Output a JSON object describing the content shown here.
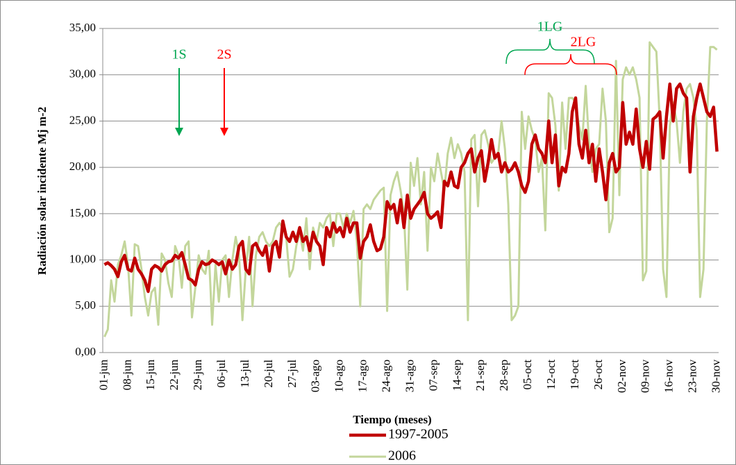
{
  "chart_data": {
    "type": "line",
    "y_label": "Radiación solar incidente Mj m-2",
    "x_label": "Tiempo (meses)",
    "ylim": [
      0,
      35
    ],
    "yticks": [
      {
        "value": 0,
        "label": "0,00"
      },
      {
        "value": 5,
        "label": "5,00"
      },
      {
        "value": 10,
        "label": "10,00"
      },
      {
        "value": 15,
        "label": "15,00"
      },
      {
        "value": 20,
        "label": "20,00"
      },
      {
        "value": 25,
        "label": "25,00"
      },
      {
        "value": 30,
        "label": "30,00"
      },
      {
        "value": 35,
        "label": "35,00"
      }
    ],
    "grid": true,
    "categories": [
      "01-jun",
      null,
      null,
      null,
      null,
      null,
      null,
      "08-jun",
      null,
      null,
      null,
      null,
      null,
      null,
      "15-jun",
      null,
      null,
      null,
      null,
      null,
      null,
      "22-jun",
      null,
      null,
      null,
      null,
      null,
      null,
      "29-jun",
      null,
      null,
      null,
      null,
      null,
      null,
      "06-jul",
      null,
      null,
      null,
      null,
      null,
      null,
      "13-jul",
      null,
      null,
      null,
      null,
      null,
      null,
      "20-jul",
      null,
      null,
      null,
      null,
      null,
      null,
      "27-jul",
      null,
      null,
      null,
      null,
      null,
      null,
      "03-ago",
      null,
      null,
      null,
      null,
      null,
      null,
      "10-ago",
      null,
      null,
      null,
      null,
      null,
      null,
      "17-ago",
      null,
      null,
      null,
      null,
      null,
      null,
      "24-ago",
      null,
      null,
      null,
      null,
      null,
      null,
      "31-ago",
      null,
      null,
      null,
      null,
      null,
      null,
      "07-sep",
      null,
      null,
      null,
      null,
      null,
      null,
      "14-sep",
      null,
      null,
      null,
      null,
      null,
      null,
      "21-sep",
      null,
      null,
      null,
      null,
      null,
      null,
      "28-sep",
      null,
      null,
      null,
      null,
      null,
      null,
      "05-oct",
      null,
      null,
      null,
      null,
      null,
      null,
      "12-oct",
      null,
      null,
      null,
      null,
      null,
      null,
      "19-oct",
      null,
      null,
      null,
      null,
      null,
      null,
      "26-oct",
      null,
      null,
      null,
      null,
      null,
      null,
      "02-nov",
      null,
      null,
      null,
      null,
      null,
      null,
      "09-nov",
      null,
      null,
      null,
      null,
      null,
      null,
      "16-nov",
      null,
      null,
      null,
      null,
      null,
      null,
      "23-nov",
      null,
      null,
      null,
      null,
      null,
      null,
      "30-nov"
    ],
    "series": [
      {
        "name": "1997-2005",
        "color": "#c00000",
        "width": 4.5,
        "values": [
          9.5,
          9.7,
          9.4,
          9.0,
          8.2,
          9.8,
          10.5,
          9.0,
          8.8,
          10.2,
          9.0,
          8.5,
          7.8,
          6.6,
          9.0,
          9.4,
          9.2,
          8.8,
          9.5,
          9.8,
          9.9,
          10.5,
          10.2,
          10.8,
          9.5,
          8.0,
          7.8,
          7.3,
          9.0,
          9.8,
          9.5,
          9.6,
          10.0,
          9.8,
          9.5,
          9.8,
          8.5,
          10.0,
          9.0,
          9.5,
          11.5,
          12.0,
          9.0,
          8.5,
          11.5,
          11.8,
          11.0,
          10.5,
          11.5,
          8.8,
          11.5,
          12.0,
          10.3,
          14.2,
          12.5,
          12.0,
          13.0,
          12.0,
          13.5,
          12.0,
          12.5,
          11.0,
          13.0,
          12.0,
          11.5,
          9.5,
          13.5,
          12.5,
          14.0,
          13.0,
          13.5,
          12.5,
          14.5,
          13.0,
          14.0,
          14.0,
          10.2,
          12.0,
          12.5,
          13.8,
          12.0,
          11.0,
          11.2,
          12.5,
          16.3,
          15.5,
          16.0,
          14.0,
          16.5,
          13.5,
          17.0,
          14.5,
          15.5,
          16.0,
          16.5,
          17.3,
          15.0,
          14.5,
          14.8,
          15.2,
          13.5,
          18.5,
          18.0,
          19.5,
          18.0,
          17.8,
          20.0,
          20.5,
          21.5,
          22.0,
          19.5,
          21.0,
          21.8,
          18.5,
          20.5,
          23.0,
          21.0,
          21.5,
          19.5,
          20.5,
          19.5,
          19.8,
          20.5,
          19.5,
          18.0,
          17.3,
          18.5,
          22.5,
          23.5,
          22.0,
          21.5,
          20.5,
          25.0,
          20.5,
          23.5,
          18.0,
          20.0,
          19.5,
          21.5,
          26.0,
          27.5,
          22.5,
          21.0,
          24.0,
          20.5,
          22.5,
          18.5,
          22.0,
          19.5,
          16.5,
          20.5,
          21.5,
          19.5,
          20.0,
          27.0,
          22.5,
          23.8,
          22.5,
          26.3,
          22.0,
          20.0,
          22.8,
          19.8,
          25.2,
          25.5,
          26.0,
          21.0,
          25.5,
          29.0,
          25.0,
          28.5,
          29.0,
          28.0,
          27.5,
          19.5,
          25.5,
          27.5,
          29.0,
          27.5,
          26.0,
          25.5,
          26.5,
          21.7
        ]
      },
      {
        "name": "2006",
        "color": "#c3d69b",
        "width": 3,
        "values": [
          1.7,
          2.5,
          7.8,
          5.5,
          9.5,
          10.5,
          12.0,
          9.5,
          4.0,
          11.7,
          11.5,
          9.0,
          6.0,
          4.0,
          6.5,
          7.0,
          3.0,
          10.7,
          10.0,
          7.5,
          6.0,
          11.5,
          10.5,
          7.0,
          11.5,
          12.0,
          3.8,
          7.0,
          10.5,
          9.0,
          8.5,
          11.0,
          3.0,
          9.5,
          5.5,
          10.0,
          10.5,
          6.0,
          10.0,
          12.5,
          10.5,
          3.5,
          9.0,
          12.5,
          5.0,
          10.5,
          12.5,
          13.0,
          12.0,
          11.5,
          12.0,
          13.5,
          14.0,
          13.5,
          12.5,
          8.2,
          9.0,
          11.5,
          13.0,
          11.0,
          14.5,
          9.0,
          13.5,
          12.0,
          14.0,
          13.5,
          14.5,
          15.0,
          11.5,
          15.0,
          15.0,
          13.5,
          15.0,
          14.0,
          15.3,
          12.0,
          5.0,
          15.5,
          16.0,
          15.5,
          16.5,
          17.0,
          17.5,
          17.8,
          4.5,
          17.0,
          18.5,
          19.5,
          17.5,
          15.0,
          6.8,
          20.5,
          18.0,
          21.0,
          16.0,
          19.5,
          11.0,
          20.0,
          18.5,
          21.5,
          19.5,
          17.5,
          21.5,
          23.2,
          21.0,
          22.5,
          21.5,
          19.5,
          3.5,
          23.0,
          23.5,
          15.8,
          23.5,
          24.0,
          22.5,
          20.5,
          21.0,
          21.5,
          25.0,
          22.0,
          16.0,
          3.5,
          4.0,
          5.0,
          26.0,
          22.0,
          25.5,
          24.0,
          23.0,
          19.5,
          21.0,
          13.2,
          28.0,
          27.5,
          24.5,
          17.5,
          27.0,
          22.0,
          27.5,
          27.5,
          27.0,
          24.5,
          23.0,
          28.8,
          22.5,
          19.5,
          22.0,
          22.5,
          28.5,
          25.0,
          13.0,
          14.5,
          31.5,
          17.0,
          29.5,
          30.8,
          30.0,
          30.8,
          29.5,
          27.5,
          7.8,
          8.8,
          33.5,
          33.0,
          32.5,
          25.0,
          9.0,
          6.0,
          24.5,
          27.0,
          25.0,
          20.5,
          26.0,
          28.5,
          29.0,
          27.5,
          24.0,
          6.0,
          9.0,
          25.0,
          33.0,
          33.0,
          32.7
        ]
      }
    ],
    "annotations": [
      {
        "text": "1S",
        "color": "#00a651"
      },
      {
        "text": "2S",
        "color": "#ff0000"
      },
      {
        "text": "1LG",
        "color": "#00a651"
      },
      {
        "text": "2LG",
        "color": "#ff0000"
      }
    ]
  }
}
